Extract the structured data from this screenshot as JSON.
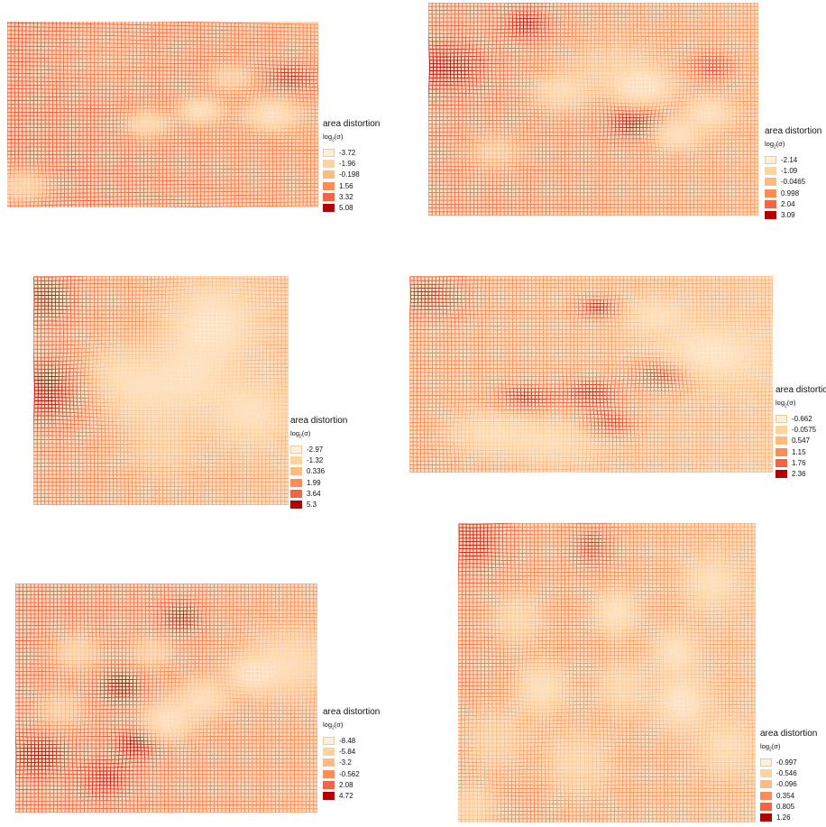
{
  "legend_title": "area distortion",
  "legend_subtitle_base": "log",
  "legend_subtitle_sub": "2",
  "legend_subtitle_arg": "(σ)",
  "palette": [
    "#fef0d9",
    "#fdd49e",
    "#fdbb84",
    "#fc8d59",
    "#ef6548",
    "#d7301f",
    "#b30000"
  ],
  "panels": [
    {
      "labels": [
        "-3.72",
        "-1.96",
        "-0.198",
        "1.56",
        "3.32",
        "5.08"
      ]
    },
    {
      "labels": [
        "-2.14",
        "-1.09",
        "-0.0465",
        "0.998",
        "2.04",
        "3.09"
      ]
    },
    {
      "labels": [
        "-2.97",
        "-1.32",
        "0.336",
        "1.99",
        "3.64",
        "5.3"
      ]
    },
    {
      "labels": [
        "-0.662",
        "-0.0575",
        "0.547",
        "1.15",
        "1.76",
        "2.36"
      ]
    },
    {
      "labels": [
        "-8.48",
        "-5.84",
        "-3.2",
        "-0.562",
        "2.08",
        "4.72"
      ]
    },
    {
      "labels": [
        "-0.997",
        "-0.546",
        "-0.096",
        "0.354",
        "0.805",
        "1.26"
      ]
    }
  ]
}
